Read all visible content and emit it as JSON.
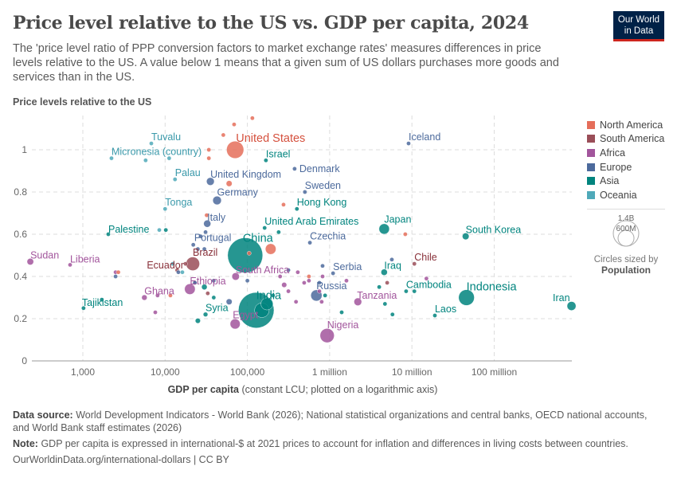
{
  "header": {
    "title": "Price level relative to the US vs. GDP per capita, 2024",
    "subtitle": "The 'price level ratio of PPP conversion factors to market exchange rates' measures differences in price levels relative to the US. A value below 1 means that a given sum of US dollars purchases more goods and services than in the US.",
    "logo": "Our World in Data"
  },
  "footer": {
    "source_label": "Data source:",
    "source": "World Development Indicators - World Bank (2026); National statistical organizations and central banks, OECD national accounts, and World Bank staff estimates (2026)",
    "note_label": "Note:",
    "note": "GDP per capita is expressed in international-$ at 2021 prices to account for inflation and differences in living costs between countries.",
    "link": "OurWorldinData.org/international-dollars | CC BY"
  },
  "size_legend": {
    "large": "1.4B",
    "small": "600M",
    "caption": "Circles sized by",
    "variable": "Population"
  },
  "chart_data": {
    "type": "scatter",
    "title": "Price level relative to the US vs. GDP per capita, 2024",
    "ylabel": "Price levels relative to the US",
    "xlabel_bold": "GDP per capita",
    "xlabel_rest": "(constant LCU; plotted on a logarithmic axis)",
    "x_scale": "log",
    "xlim": [
      240,
      890000000
    ],
    "ylim": [
      0,
      1.15
    ],
    "grid": true,
    "x_ticks": [
      {
        "v": 1000,
        "label": "1,000"
      },
      {
        "v": 10000,
        "label": "10,000"
      },
      {
        "v": 100000,
        "label": "100,000"
      },
      {
        "v": 1000000,
        "label": "1 million"
      },
      {
        "v": 10000000,
        "label": "10 million"
      },
      {
        "v": 100000000,
        "label": "100 million"
      }
    ],
    "y_ticks": [
      {
        "v": 0,
        "label": "0"
      },
      {
        "v": 0.2,
        "label": "0.2"
      },
      {
        "v": 0.4,
        "label": "0.4"
      },
      {
        "v": 0.6,
        "label": "0.6"
      },
      {
        "v": 0.8,
        "label": "0.8"
      },
      {
        "v": 1,
        "label": "1"
      }
    ],
    "legend_position": "right",
    "continents": [
      {
        "name": "North America",
        "color": "#E56E5A",
        "text": "#D5513E"
      },
      {
        "name": "South America",
        "color": "#9A4E58",
        "text": "#883039"
      },
      {
        "name": "Africa",
        "color": "#A2559C",
        "text": "#A2559C"
      },
      {
        "name": "Europe",
        "color": "#4C6A9C",
        "text": "#4C6A9C"
      },
      {
        "name": "Asia",
        "color": "#00847E",
        "text": "#00847E"
      },
      {
        "name": "Oceania",
        "color": "#4FA9B9",
        "text": "#3A99AA"
      }
    ],
    "points": [
      {
        "name": "United States",
        "c": "North America",
        "x": 71000,
        "y": 1.0,
        "pop": 340
      },
      {
        "name": "Tuvalu",
        "c": "Oceania",
        "x": 6800,
        "y": 1.03,
        "pop": 0.01
      },
      {
        "name": "Micronesia (country)",
        "c": "Oceania",
        "x": 2230,
        "y": 0.96,
        "pop": 0.1
      },
      {
        "name": "Palau",
        "c": "Oceania",
        "x": 13200,
        "y": 0.86,
        "pop": 0.02
      },
      {
        "name": "United Kingdom",
        "c": "Europe",
        "x": 35500,
        "y": 0.85,
        "pop": 69
      },
      {
        "name": "Germany",
        "c": "Europe",
        "x": 42800,
        "y": 0.76,
        "pop": 84
      },
      {
        "name": "Tonga",
        "c": "Oceania",
        "x": 10000,
        "y": 0.72,
        "pop": 0.1
      },
      {
        "name": "Italy",
        "c": "Europe",
        "x": 32500,
        "y": 0.65,
        "pop": 59
      },
      {
        "name": "Palestine",
        "c": "Asia",
        "x": 2040,
        "y": 0.6,
        "pop": 5
      },
      {
        "name": "Portugal",
        "c": "Europe",
        "x": 27000,
        "y": 0.59,
        "pop": 10
      },
      {
        "name": "China",
        "c": "Asia",
        "x": 94000,
        "y": 0.5,
        "pop": 1410
      },
      {
        "name": "Brazil",
        "c": "South America",
        "x": 21700,
        "y": 0.46,
        "pop": 211
      },
      {
        "name": "Ecuador",
        "c": "South America",
        "x": 17700,
        "y": 0.46,
        "pop": 18
      },
      {
        "name": "Sudan",
        "c": "Africa",
        "x": 230,
        "y": 0.47,
        "pop": 50
      },
      {
        "name": "Liberia",
        "c": "Africa",
        "x": 700,
        "y": 0.455,
        "pop": 5
      },
      {
        "name": "South Africa",
        "c": "Africa",
        "x": 72000,
        "y": 0.4,
        "pop": 64
      },
      {
        "name": "Ethiopia",
        "c": "Africa",
        "x": 20000,
        "y": 0.34,
        "pop": 130
      },
      {
        "name": "Ghana",
        "c": "Africa",
        "x": 5600,
        "y": 0.3,
        "pop": 34
      },
      {
        "name": "Tajikistan",
        "c": "Asia",
        "x": 1020,
        "y": 0.25,
        "pop": 10
      },
      {
        "name": "Syria",
        "c": "Asia",
        "x": 31000,
        "y": 0.22,
        "pop": 24
      },
      {
        "name": "Egypt",
        "c": "Africa",
        "x": 71000,
        "y": 0.175,
        "pop": 116
      },
      {
        "name": "India",
        "c": "Asia",
        "x": 128000,
        "y": 0.24,
        "pop": 1450
      },
      {
        "name": "Nigeria",
        "c": "Africa",
        "x": 932000,
        "y": 0.12,
        "pop": 230
      },
      {
        "name": "Russia",
        "c": "Europe",
        "x": 690000,
        "y": 0.31,
        "pop": 144
      },
      {
        "name": "Serbia",
        "c": "Europe",
        "x": 1100000,
        "y": 0.415,
        "pop": 7
      },
      {
        "name": "Tanzania",
        "c": "Africa",
        "x": 2200000,
        "y": 0.28,
        "pop": 68
      },
      {
        "name": "Iraq",
        "c": "Asia",
        "x": 4600000,
        "y": 0.42,
        "pop": 46
      },
      {
        "name": "Japan",
        "c": "Asia",
        "x": 4600000,
        "y": 0.625,
        "pop": 124
      },
      {
        "name": "Cambodia",
        "c": "Asia",
        "x": 8500000,
        "y": 0.33,
        "pop": 17
      },
      {
        "name": "Chile",
        "c": "South America",
        "x": 10700000,
        "y": 0.46,
        "pop": 20
      },
      {
        "name": "Laos",
        "c": "Asia",
        "x": 19000000,
        "y": 0.215,
        "pop": 7
      },
      {
        "name": "Indonesia",
        "c": "Asia",
        "x": 46000000,
        "y": 0.3,
        "pop": 283
      },
      {
        "name": "South Korea",
        "c": "Asia",
        "x": 45000000,
        "y": 0.59,
        "pop": 52
      },
      {
        "name": "Iran",
        "c": "Asia",
        "x": 870000000,
        "y": 0.26,
        "pop": 91
      },
      {
        "name": "Iceland",
        "c": "Europe",
        "x": 9100000,
        "y": 1.03,
        "pop": 0.4
      },
      {
        "name": "Denmark",
        "c": "Europe",
        "x": 375000,
        "y": 0.91,
        "pop": 6
      },
      {
        "name": "Sweden",
        "c": "Europe",
        "x": 500000,
        "y": 0.8,
        "pop": 10
      },
      {
        "name": "Hong Kong",
        "c": "Asia",
        "x": 400000,
        "y": 0.72,
        "pop": 7.5
      },
      {
        "name": "United Arab Emirates",
        "c": "Asia",
        "x": 162000,
        "y": 0.63,
        "pop": 10
      },
      {
        "name": "Israel",
        "c": "Asia",
        "x": 168000,
        "y": 0.95,
        "pop": 10
      },
      {
        "name": "Czechia",
        "c": "Europe",
        "x": 575000,
        "y": 0.56,
        "pop": 11
      },
      {
        "c": "North America",
        "x": 115000,
        "y": 1.15,
        "pop": 1
      },
      {
        "c": "North America",
        "x": 69000,
        "y": 1.12,
        "pop": 1
      },
      {
        "c": "North America",
        "x": 51000,
        "y": 1.07,
        "pop": 1
      },
      {
        "c": "North America",
        "x": 34000,
        "y": 1.0,
        "pop": 1
      },
      {
        "c": "North America",
        "x": 34000,
        "y": 0.96,
        "pop": 1
      },
      {
        "c": "North America",
        "x": 60000,
        "y": 0.84,
        "pop": 40
      },
      {
        "c": "North America",
        "x": 32000,
        "y": 0.69,
        "pop": 1
      },
      {
        "c": "North America",
        "x": 275000,
        "y": 0.74,
        "pop": 1
      },
      {
        "c": "North America",
        "x": 8300000,
        "y": 0.6,
        "pop": 1
      },
      {
        "c": "North America",
        "x": 192000,
        "y": 0.53,
        "pop": 130
      },
      {
        "c": "North America",
        "x": 105000,
        "y": 0.51,
        "pop": 2
      },
      {
        "c": "North America",
        "x": 11600,
        "y": 0.31,
        "pop": 1
      },
      {
        "c": "North America",
        "x": 560000,
        "y": 0.4,
        "pop": 1
      },
      {
        "c": "North America",
        "x": 2700,
        "y": 0.42,
        "pop": 1
      },
      {
        "c": "Oceania",
        "x": 5800,
        "y": 0.95,
        "pop": 0.1
      },
      {
        "c": "Oceania",
        "x": 11200,
        "y": 0.96,
        "pop": 0.1
      },
      {
        "c": "Oceania",
        "x": 8500,
        "y": 0.62,
        "pop": 0.3
      },
      {
        "c": "Oceania",
        "x": 16200,
        "y": 0.42,
        "pop": 1
      },
      {
        "c": "Oceania",
        "x": 12400,
        "y": 0.46,
        "pop": 10
      },
      {
        "c": "Asia",
        "x": 240000,
        "y": 0.61,
        "pop": 5
      },
      {
        "c": "Asia",
        "x": 10200,
        "y": 0.62,
        "pop": 3
      },
      {
        "c": "Asia",
        "x": 25000,
        "y": 0.19,
        "pop": 30
      },
      {
        "c": "Asia",
        "x": 1700,
        "y": 0.29,
        "pop": 3
      },
      {
        "c": "Asia",
        "x": 4700000,
        "y": 0.27,
        "pop": 20
      },
      {
        "c": "Asia",
        "x": 10700000,
        "y": 0.33,
        "pop": 4
      },
      {
        "c": "Asia",
        "x": 5800000,
        "y": 0.22,
        "pop": 3
      },
      {
        "c": "Asia",
        "x": 1400000,
        "y": 0.23,
        "pop": 20
      },
      {
        "c": "Asia",
        "x": 880000,
        "y": 0.31,
        "pop": 5
      },
      {
        "c": "Asia",
        "x": 205000,
        "y": 0.31,
        "pop": 5
      },
      {
        "c": "Asia",
        "x": 173000,
        "y": 0.27,
        "pop": 170
      },
      {
        "c": "Asia",
        "x": 30000,
        "y": 0.35,
        "pop": 35
      },
      {
        "c": "Asia",
        "x": 4000000,
        "y": 0.35,
        "pop": 3
      },
      {
        "c": "Asia",
        "x": 39000,
        "y": 0.3,
        "pop": 10
      },
      {
        "c": "Asia",
        "x": 150000,
        "y": 0.24,
        "pop": 240
      },
      {
        "c": "Africa",
        "x": 2500,
        "y": 0.42,
        "pop": 5
      },
      {
        "c": "Africa",
        "x": 8100,
        "y": 0.31,
        "pop": 3
      },
      {
        "c": "Africa",
        "x": 7600,
        "y": 0.23,
        "pop": 3
      },
      {
        "c": "Africa",
        "x": 250000,
        "y": 0.4,
        "pop": 3
      },
      {
        "c": "Africa",
        "x": 410000,
        "y": 0.42,
        "pop": 3
      },
      {
        "c": "Africa",
        "x": 490000,
        "y": 0.37,
        "pop": 3
      },
      {
        "c": "Africa",
        "x": 280000,
        "y": 0.36,
        "pop": 30
      },
      {
        "c": "Africa",
        "x": 390000,
        "y": 0.28,
        "pop": 5
      },
      {
        "c": "Africa",
        "x": 560000,
        "y": 0.38,
        "pop": 5
      },
      {
        "c": "Africa",
        "x": 800000,
        "y": 0.28,
        "pop": 5
      },
      {
        "c": "Africa",
        "x": 1600000,
        "y": 0.38,
        "pop": 3
      },
      {
        "c": "Africa",
        "x": 820000,
        "y": 0.4,
        "pop": 3
      },
      {
        "c": "Africa",
        "x": 15000000,
        "y": 0.39,
        "pop": 3
      },
      {
        "c": "Africa",
        "x": 315000,
        "y": 0.33,
        "pop": 20
      },
      {
        "c": "Africa",
        "x": 23000,
        "y": 0.37,
        "pop": 3
      },
      {
        "c": "Africa",
        "x": 750000,
        "y": 0.33,
        "pop": 5
      },
      {
        "c": "Europe",
        "x": 2500,
        "y": 0.4,
        "pop": 2
      },
      {
        "c": "Europe",
        "x": 14500,
        "y": 0.42,
        "pop": 2
      },
      {
        "c": "Europe",
        "x": 23000,
        "y": 0.37,
        "pop": 2
      },
      {
        "c": "Europe",
        "x": 39000,
        "y": 0.38,
        "pop": 3
      },
      {
        "c": "Europe",
        "x": 100000,
        "y": 0.38,
        "pop": 2
      },
      {
        "c": "Europe",
        "x": 315000,
        "y": 0.43,
        "pop": 2
      },
      {
        "c": "Europe",
        "x": 750000,
        "y": 0.37,
        "pop": 2
      },
      {
        "c": "Europe",
        "x": 820000,
        "y": 0.45,
        "pop": 2
      },
      {
        "c": "Europe",
        "x": 5700000,
        "y": 0.48,
        "pop": 2
      },
      {
        "c": "Europe",
        "x": 22000,
        "y": 0.55,
        "pop": 2
      },
      {
        "c": "Europe",
        "x": 25000,
        "y": 0.53,
        "pop": 2
      },
      {
        "c": "Europe",
        "x": 30000,
        "y": 0.53,
        "pop": 3
      },
      {
        "c": "Europe",
        "x": 60000,
        "y": 0.28,
        "pop": 40
      },
      {
        "c": "Europe",
        "x": 31000,
        "y": 0.61,
        "pop": 3
      },
      {
        "c": "South America",
        "x": 33000,
        "y": 0.32,
        "pop": 3
      },
      {
        "c": "South America",
        "x": 14000,
        "y": 0.43,
        "pop": 3
      },
      {
        "c": "South America",
        "x": 5000000,
        "y": 0.37,
        "pop": 3
      }
    ]
  }
}
